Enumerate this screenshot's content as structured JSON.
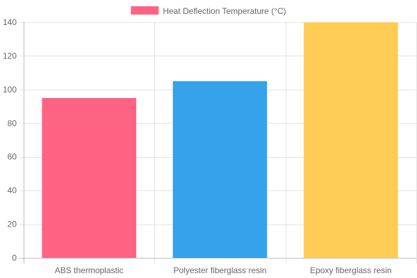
{
  "chart_data": {
    "type": "bar",
    "categories": [
      "ABS thermoplastic",
      "Polyester fiberglass resin",
      "Epoxy fiberglass resin"
    ],
    "series": [
      {
        "name": "Heat Deflection Temperature (°C)",
        "values": [
          95,
          105,
          140
        ],
        "colors": [
          "#ff6384",
          "#36a2eb",
          "#ffcd56"
        ],
        "legend_color": "#ff6384"
      }
    ],
    "ylim": [
      0,
      140
    ],
    "yticks": [
      0,
      20,
      40,
      60,
      80,
      100,
      120,
      140
    ],
    "grid": true,
    "legend_position": "top"
  }
}
